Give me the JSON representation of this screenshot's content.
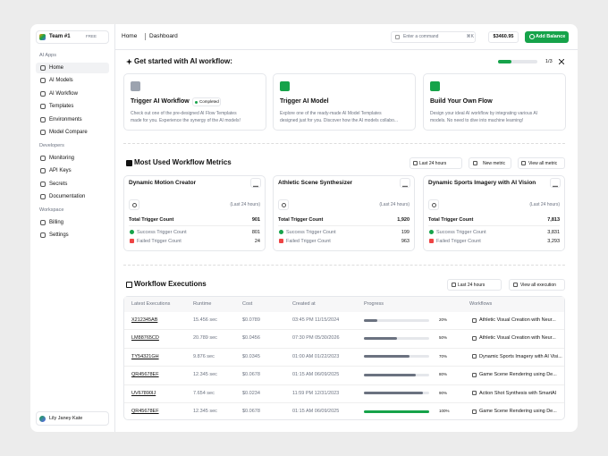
{
  "sidebar": {
    "team": "Team #1",
    "plan": "FREE",
    "sections": [
      {
        "title": "AI Apps",
        "items": [
          "Home",
          "AI Models",
          "AI Workflow",
          "Templates",
          "Environments",
          "Model Compare"
        ]
      },
      {
        "title": "Developers",
        "items": [
          "Monitoring",
          "API Keys",
          "Secrets",
          "Documentation"
        ]
      },
      {
        "title": "Workspace",
        "items": [
          "Billing",
          "Settings"
        ]
      }
    ],
    "user": "Lily Janey Kate"
  },
  "topbar": {
    "breadcrumb": [
      "Home",
      "Dashboard"
    ],
    "search_placeholder": "Enter a command",
    "shortcut": "⌘K",
    "balance": "$3460.95",
    "add_button": "Add Balance"
  },
  "getting_started": {
    "title": "Get started with AI workflow:",
    "progress": "1/3",
    "cards": [
      {
        "title": "Trigger AI Workflow",
        "badge": "Completed",
        "description": [
          "Check out one of the pre-designed AI Flow Templates",
          "made for you. Experience the synergy of the AI models!"
        ]
      },
      {
        "title": "Trigger AI Model",
        "description": [
          "Explore one of the ready-made AI Model Templates",
          "designed just for you. Discover how the AI models collabo..."
        ]
      },
      {
        "title": "Build Your Own Flow",
        "description": [
          "Design your ideal AI workflow by integrating various AI",
          "models. No need to dive into machine learning!"
        ]
      }
    ]
  },
  "metrics": {
    "title": "Most Used Workflow Metrics",
    "filter": "Last 24 hours",
    "buttons": [
      "New metric",
      "View all metric"
    ],
    "cards": [
      {
        "name": "Dynamic Motion Creator",
        "period": "(Last 24 hours)",
        "total_label": "Total Trigger Count",
        "total": "901",
        "success_label": "Success Trigger Count",
        "success": "801",
        "failed_label": "Failed Trigger Count",
        "failed": "24"
      },
      {
        "name": "Athletic Scene Synthesizer",
        "period": "(Last 24 hours)",
        "total_label": "Total Trigger Count",
        "total": "1,920",
        "success_label": "Success Trigger Count",
        "success": "199",
        "failed_label": "Failed Trigger Count",
        "failed": "963"
      },
      {
        "name": "Dynamic Sports Imagery with AI Vision",
        "period": "(Last 24 hours)",
        "total_label": "Total Trigger Count",
        "total": "7,813",
        "success_label": "Success Trigger Count",
        "success": "3,831",
        "failed_label": "Failed Trigger Count",
        "failed": "3,293"
      }
    ]
  },
  "executions": {
    "title": "Workflow Executions",
    "filter": "Last 24 hours",
    "button": "View all execution",
    "columns": [
      "Latest Executions",
      "Runtime",
      "Cost",
      "Created at",
      "Progress",
      "Workflows"
    ],
    "rows": [
      {
        "id": "X212345AB",
        "runtime": "15.456 sec",
        "cost": "$0.0789",
        "created": "03:45 PM 11/15/2024",
        "progress": {
          "value": 20,
          "label": "20%"
        },
        "bar_color": "#6b7280",
        "workflow": "Athletic Visual Creation with Neur..."
      },
      {
        "id": "LM88765CD",
        "runtime": "20.789 sec",
        "cost": "$0.0456",
        "created": "07:30 PM 05/30/2026",
        "progress": {
          "value": 50,
          "label": "50%"
        },
        "bar_color": "#6b7280",
        "workflow": "Athletic Visual Creation with Neur..."
      },
      {
        "id": "TY54321GH",
        "runtime": "9.876 sec",
        "cost": "$0.0345",
        "created": "01:00 AM 01/22/2023",
        "progress": {
          "value": 70,
          "label": "70%"
        },
        "bar_color": "#6b7280",
        "workflow": "Dynamic Sports Imagery with AI Visi..."
      },
      {
        "id": "QR45678EF",
        "runtime": "12.345 sec",
        "cost": "$0.0678",
        "created": "01:15 AM 06/09/2025",
        "progress": {
          "value": 80,
          "label": "80%"
        },
        "bar_color": "#6b7280",
        "workflow": "Game Scene Rendering using De..."
      },
      {
        "id": "UV67890IJ",
        "runtime": "7.654 sec",
        "cost": "$0.0234",
        "created": "11:59 PM 12/31/2023",
        "progress": {
          "value": 90,
          "label": "90%"
        },
        "bar_color": "#6b7280",
        "workflow": "Action Shot Synthesis with SmartAI"
      },
      {
        "id": "QR45678EF",
        "runtime": "12.345 sec",
        "cost": "$0.0678",
        "created": "01:15 AM 06/09/2025",
        "progress": {
          "value": 100,
          "label": "100%"
        },
        "bar_color": "#16a34a",
        "workflow": "Game Scene Rendering using De..."
      }
    ]
  }
}
